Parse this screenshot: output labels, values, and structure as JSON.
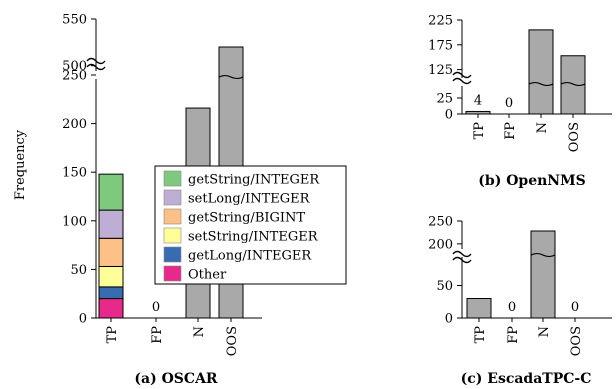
{
  "figure": {
    "ylabel": "Frequency"
  },
  "chart_data": [
    {
      "type": "bar",
      "stacked": true,
      "caption": "(a) OSCAR",
      "categories": [
        "TP",
        "FP",
        "N",
        "OOS"
      ],
      "ylim": [
        0,
        550
      ],
      "axis_break": [
        250,
        490
      ],
      "yticks": [
        "0",
        "50",
        "100",
        "150",
        "200",
        "250",
        "500",
        "550"
      ],
      "series": [
        {
          "name": "Other",
          "color": "#e7298a",
          "values": [
            20,
            0,
            0,
            0
          ]
        },
        {
          "name": "getLong/INTEGER",
          "color": "#386cb0",
          "values": [
            12,
            0,
            0,
            0
          ]
        },
        {
          "name": "setString/INTEGER",
          "color": "#ffff99",
          "values": [
            21,
            0,
            0,
            0
          ]
        },
        {
          "name": "getString/BIGINT",
          "color": "#fdc086",
          "values": [
            29,
            0,
            0,
            0
          ]
        },
        {
          "name": "setLong/INTEGER",
          "color": "#beaed4",
          "values": [
            29,
            0,
            0,
            0
          ]
        },
        {
          "name": "getString/INTEGER",
          "color": "#7fc97f",
          "values": [
            37,
            0,
            0,
            0
          ]
        },
        {
          "name": "",
          "color": "#a9a9a9",
          "values": [
            0,
            0,
            216,
            520
          ]
        }
      ],
      "data_labels": [
        {
          "category": "FP",
          "text": "0"
        }
      ],
      "legend": {
        "placement": "right",
        "entries": [
          {
            "label": "getString/INTEGER",
            "color": "#7fc97f"
          },
          {
            "label": "setLong/INTEGER",
            "color": "#beaed4"
          },
          {
            "label": "getString/BIGINT",
            "color": "#fdc086"
          },
          {
            "label": "setString/INTEGER",
            "color": "#ffff99"
          },
          {
            "label": "getLong/INTEGER",
            "color": "#386cb0"
          },
          {
            "label": "Other",
            "color": "#e7298a"
          }
        ]
      }
    },
    {
      "type": "bar",
      "caption": "(b) OpenNMS",
      "categories": [
        "TP",
        "FP",
        "N",
        "OOS"
      ],
      "ylim": [
        0,
        225
      ],
      "axis_break": [
        50,
        100
      ],
      "yticks": [
        "0",
        "25",
        "125",
        "175",
        "225"
      ],
      "values": [
        4,
        0,
        205,
        153
      ],
      "data_labels": [
        {
          "category": "TP",
          "text": "4"
        },
        {
          "category": "FP",
          "text": "0"
        }
      ]
    },
    {
      "type": "bar",
      "caption": "(c) EscadaTPC-C",
      "categories": [
        "TP",
        "FP",
        "N",
        "OOS"
      ],
      "ylim": [
        0,
        250
      ],
      "axis_break": [
        100,
        180
      ],
      "yticks": [
        "0",
        "50",
        "200",
        "250"
      ],
      "values": [
        30,
        0,
        228,
        0
      ],
      "data_labels": [
        {
          "category": "FP",
          "text": "0"
        },
        {
          "category": "OOS",
          "text": "0"
        }
      ]
    }
  ]
}
